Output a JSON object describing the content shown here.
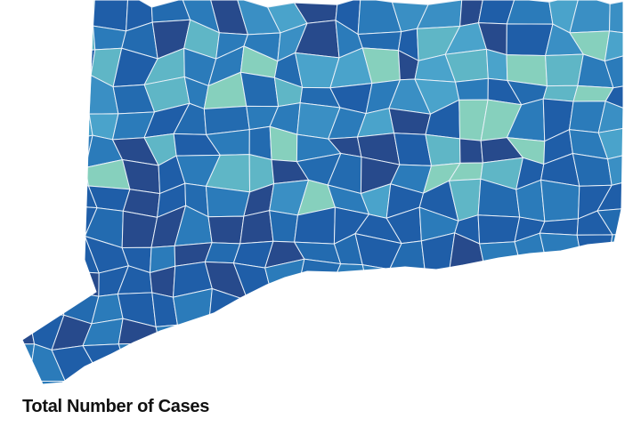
{
  "title": "Total Number of Cases"
}
